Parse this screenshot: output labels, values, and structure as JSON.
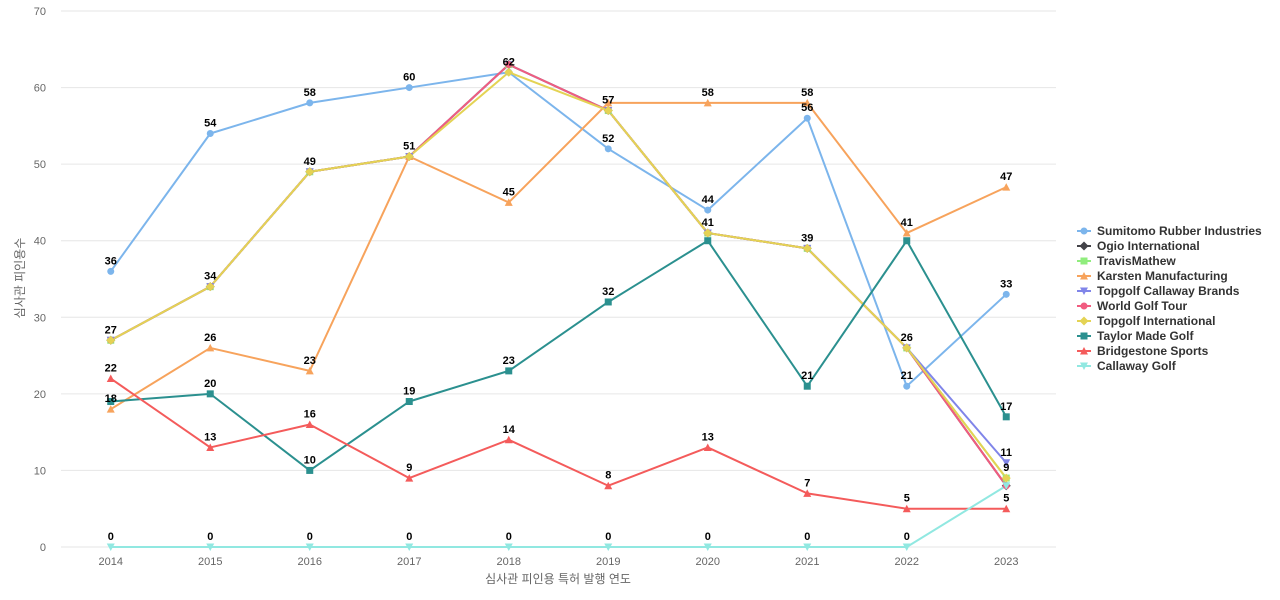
{
  "chart_data": {
    "type": "line",
    "title": "",
    "xlabel": "심사관 피인용 특허 발행 연도",
    "ylabel": "심사관 피인용수",
    "ylim": [
      0,
      70
    ],
    "yticks": [
      0,
      10,
      20,
      30,
      40,
      50,
      60,
      70
    ],
    "x": [
      "2014",
      "2015",
      "2016",
      "2017",
      "2018",
      "2019",
      "2020",
      "2021",
      "2022",
      "2023"
    ],
    "legend_position": "right",
    "series": [
      {
        "name": "Sumitomo Rubber Industries",
        "color": "#7cb5ec",
        "marker": "circle",
        "values": [
          36,
          54,
          58,
          60,
          62,
          52,
          44,
          56,
          21,
          33
        ]
      },
      {
        "name": "Ogio International",
        "color": "#434348",
        "marker": "diamond",
        "values": [
          27,
          34,
          49,
          51,
          63,
          57,
          41,
          39,
          26,
          8
        ]
      },
      {
        "name": "TravisMathew",
        "color": "#90ed7d",
        "marker": "square",
        "values": [
          27,
          34,
          49,
          51,
          63,
          57,
          41,
          39,
          26,
          9
        ]
      },
      {
        "name": "Karsten Manufacturing",
        "color": "#f7a35c",
        "marker": "triangle",
        "values": [
          18,
          26,
          23,
          51,
          45,
          58,
          58,
          58,
          41,
          47
        ]
      },
      {
        "name": "Topgolf Callaway Brands",
        "color": "#8085e9",
        "marker": "triangle-down",
        "values": [
          27,
          34,
          49,
          51,
          63,
          57,
          41,
          39,
          26,
          11
        ]
      },
      {
        "name": "World Golf Tour",
        "color": "#f15c80",
        "marker": "circle",
        "values": [
          27,
          34,
          49,
          51,
          63,
          57,
          41,
          39,
          26,
          8
        ]
      },
      {
        "name": "Topgolf International",
        "color": "#e4d354",
        "marker": "diamond",
        "values": [
          27,
          34,
          49,
          51,
          62,
          57,
          41,
          39,
          26,
          9
        ]
      },
      {
        "name": "Taylor Made Golf",
        "color": "#2b908f",
        "marker": "square",
        "values": [
          19,
          20,
          10,
          19,
          23,
          32,
          40,
          21,
          40,
          17
        ]
      },
      {
        "name": "Bridgestone Sports",
        "color": "#f45b5b",
        "marker": "triangle",
        "values": [
          22,
          13,
          16,
          9,
          14,
          8,
          13,
          7,
          5,
          5
        ]
      },
      {
        "name": "Callaway Golf",
        "color": "#91e8e1",
        "marker": "triangle-down",
        "values": [
          0,
          0,
          0,
          0,
          0,
          0,
          0,
          0,
          0,
          8
        ]
      }
    ],
    "data_labels": [
      {
        "x": "2014",
        "y": 36,
        "text": "36"
      },
      {
        "x": "2015",
        "y": 54,
        "text": "54"
      },
      {
        "x": "2016",
        "y": 58,
        "text": "58"
      },
      {
        "x": "2017",
        "y": 60,
        "text": "60"
      },
      {
        "x": "2018",
        "y": 62,
        "text": "62"
      },
      {
        "x": "2019",
        "y": 52,
        "text": "52"
      },
      {
        "x": "2020",
        "y": 44,
        "text": "44"
      },
      {
        "x": "2021",
        "y": 56,
        "text": "56"
      },
      {
        "x": "2022",
        "y": 21,
        "text": "21"
      },
      {
        "x": "2023",
        "y": 33,
        "text": "33"
      },
      {
        "x": "2014",
        "y": 27,
        "text": "27"
      },
      {
        "x": "2015",
        "y": 34,
        "text": "34"
      },
      {
        "x": "2016",
        "y": 49,
        "text": "49"
      },
      {
        "x": "2017",
        "y": 51,
        "text": "51"
      },
      {
        "x": "2019",
        "y": 57,
        "text": "57"
      },
      {
        "x": "2020",
        "y": 41,
        "text": "41"
      },
      {
        "x": "2021",
        "y": 39,
        "text": "39"
      },
      {
        "x": "2022",
        "y": 26,
        "text": "26"
      },
      {
        "x": "2014",
        "y": 18,
        "text": "18"
      },
      {
        "x": "2015",
        "y": 26,
        "text": "26"
      },
      {
        "x": "2016",
        "y": 23,
        "text": "23"
      },
      {
        "x": "2018",
        "y": 45,
        "text": "45"
      },
      {
        "x": "2020",
        "y": 58,
        "text": "58"
      },
      {
        "x": "2021",
        "y": 58,
        "text": "58"
      },
      {
        "x": "2022",
        "y": 41,
        "text": "41"
      },
      {
        "x": "2023",
        "y": 47,
        "text": "47"
      },
      {
        "x": "2015",
        "y": 20,
        "text": "20"
      },
      {
        "x": "2016",
        "y": 10,
        "text": "10"
      },
      {
        "x": "2017",
        "y": 19,
        "text": "19"
      },
      {
        "x": "2018",
        "y": 23,
        "text": "23"
      },
      {
        "x": "2019",
        "y": 32,
        "text": "32"
      },
      {
        "x": "2021",
        "y": 21,
        "text": "21"
      },
      {
        "x": "2023",
        "y": 17,
        "text": "17"
      },
      {
        "x": "2023",
        "y": 11,
        "text": "11"
      },
      {
        "x": "2023",
        "y": 9,
        "text": "9"
      },
      {
        "x": "2014",
        "y": 22,
        "text": "22"
      },
      {
        "x": "2015",
        "y": 13,
        "text": "13"
      },
      {
        "x": "2016",
        "y": 16,
        "text": "16"
      },
      {
        "x": "2017",
        "y": 9,
        "text": "9"
      },
      {
        "x": "2018",
        "y": 14,
        "text": "14"
      },
      {
        "x": "2019",
        "y": 8,
        "text": "8"
      },
      {
        "x": "2020",
        "y": 13,
        "text": "13"
      },
      {
        "x": "2021",
        "y": 7,
        "text": "7"
      },
      {
        "x": "2022",
        "y": 5,
        "text": "5"
      },
      {
        "x": "2023",
        "y": 5,
        "text": "5"
      },
      {
        "x": "2014",
        "y": 0,
        "text": "0"
      },
      {
        "x": "2015",
        "y": 0,
        "text": "0"
      },
      {
        "x": "2016",
        "y": 0,
        "text": "0"
      },
      {
        "x": "2017",
        "y": 0,
        "text": "0"
      },
      {
        "x": "2018",
        "y": 0,
        "text": "0"
      },
      {
        "x": "2019",
        "y": 0,
        "text": "0"
      },
      {
        "x": "2020",
        "y": 0,
        "text": "0"
      },
      {
        "x": "2021",
        "y": 0,
        "text": "0"
      },
      {
        "x": "2022",
        "y": 0,
        "text": "0"
      }
    ]
  }
}
